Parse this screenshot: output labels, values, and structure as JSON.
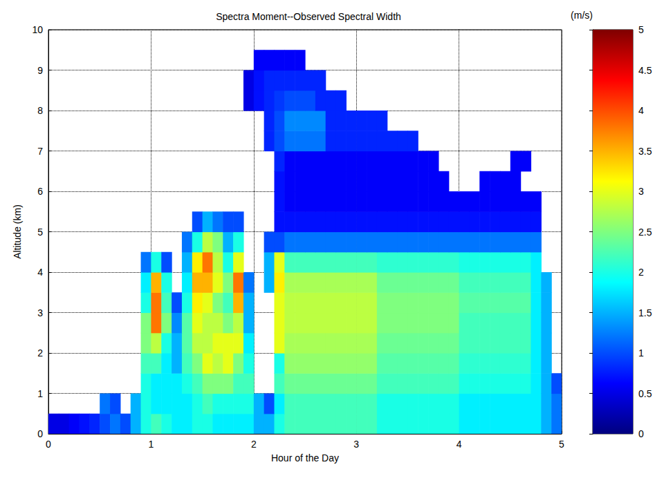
{
  "chart_data": {
    "type": "heatmap",
    "title": "Spectra Moment--Observed Spectral Width",
    "xlabel": "Hour of the Day",
    "ylabel": "Altitude (km)",
    "xlim": [
      0,
      5
    ],
    "xticks": [
      0,
      1,
      2,
      3,
      4,
      5
    ],
    "ylim": [
      0,
      10
    ],
    "yticks": [
      0,
      1,
      2,
      3,
      4,
      5,
      6,
      7,
      8,
      9,
      10
    ],
    "grid": true,
    "x": [
      0.05,
      0.15,
      0.25,
      0.35,
      0.45,
      0.55,
      0.65,
      0.75,
      0.85,
      0.95,
      1.05,
      1.15,
      1.25,
      1.35,
      1.45,
      1.55,
      1.65,
      1.75,
      1.85,
      1.95,
      2.05,
      2.15,
      2.25,
      2.35,
      2.45,
      2.55,
      2.65,
      2.75,
      2.85,
      2.95,
      3.05,
      3.15,
      3.25,
      3.35,
      3.45,
      3.55,
      3.65,
      3.75,
      3.85,
      3.95,
      4.05,
      4.15,
      4.25,
      4.35,
      4.45,
      4.55,
      4.65,
      4.75,
      4.85,
      4.95
    ],
    "y": [
      0.25,
      0.75,
      1.25,
      1.75,
      2.25,
      2.75,
      3.25,
      3.75,
      4.25,
      4.75,
      5.25,
      5.75,
      6.25,
      6.75,
      7.25,
      7.75,
      8.25,
      8.75,
      9.25,
      9.75
    ],
    "values": [
      [
        0.5,
        0.5,
        0.6,
        0.7,
        0.8,
        1.0,
        1.2,
        1.0,
        1.5,
        2.0,
        2.2,
        2.0,
        1.8,
        1.8,
        2.0,
        2.0,
        1.8,
        1.8,
        1.8,
        1.8,
        1.5,
        1.5,
        2.0,
        2.2,
        2.2,
        2.2,
        2.2,
        2.2,
        2.2,
        2.2,
        2.2,
        2.2,
        2.0,
        2.0,
        2.0,
        2.0,
        2.0,
        2.0,
        2.0,
        2.0,
        1.8,
        1.8,
        1.8,
        1.8,
        1.8,
        1.8,
        1.8,
        1.8,
        1.5,
        1.2
      ],
      [
        null,
        null,
        null,
        null,
        null,
        1.2,
        1.0,
        null,
        1.5,
        2.0,
        1.8,
        1.8,
        1.8,
        1.8,
        2.0,
        2.2,
        2.0,
        2.0,
        2.0,
        2.0,
        1.5,
        1.0,
        1.8,
        2.2,
        2.2,
        2.2,
        2.2,
        2.2,
        2.2,
        2.2,
        2.2,
        2.2,
        2.0,
        2.0,
        2.0,
        2.0,
        2.0,
        2.0,
        2.0,
        2.0,
        1.8,
        1.8,
        1.8,
        1.8,
        1.8,
        1.8,
        1.8,
        1.8,
        1.5,
        1.2
      ],
      [
        null,
        null,
        null,
        null,
        null,
        null,
        null,
        null,
        null,
        2.0,
        1.8,
        1.8,
        1.8,
        2.0,
        2.2,
        2.5,
        2.5,
        2.5,
        2.2,
        2.2,
        null,
        null,
        2.2,
        2.4,
        2.4,
        2.4,
        2.4,
        2.4,
        2.4,
        2.4,
        2.4,
        2.4,
        2.2,
        2.2,
        2.2,
        2.2,
        2.2,
        2.2,
        2.2,
        2.2,
        2.0,
        2.0,
        2.0,
        2.0,
        2.0,
        2.0,
        2.0,
        1.8,
        1.5,
        1.0
      ],
      [
        null,
        null,
        null,
        null,
        null,
        null,
        null,
        null,
        null,
        2.2,
        2.2,
        1.8,
        1.5,
        2.2,
        2.5,
        3.0,
        2.8,
        3.0,
        2.5,
        2.0,
        null,
        null,
        2.0,
        2.6,
        2.6,
        2.6,
        2.6,
        2.6,
        2.6,
        2.6,
        2.6,
        2.6,
        2.3,
        2.3,
        2.3,
        2.3,
        2.3,
        2.3,
        2.3,
        2.3,
        2.1,
        2.1,
        2.1,
        2.1,
        2.1,
        2.1,
        2.1,
        1.8,
        1.5,
        null
      ],
      [
        null,
        null,
        null,
        null,
        null,
        null,
        null,
        null,
        null,
        2.5,
        2.8,
        2.0,
        1.5,
        2.3,
        2.8,
        2.8,
        3.0,
        3.0,
        3.0,
        1.8,
        null,
        null,
        3.0,
        2.7,
        2.7,
        2.7,
        2.7,
        2.7,
        2.7,
        2.7,
        2.7,
        2.7,
        2.4,
        2.4,
        2.4,
        2.4,
        2.4,
        2.4,
        2.4,
        2.4,
        2.2,
        2.2,
        2.2,
        2.2,
        2.2,
        2.2,
        2.2,
        1.8,
        1.5,
        null
      ],
      [
        null,
        null,
        null,
        null,
        null,
        null,
        null,
        null,
        null,
        2.5,
        3.8,
        2.5,
        1.3,
        2.3,
        3.0,
        2.8,
        2.8,
        2.5,
        2.8,
        1.5,
        null,
        null,
        3.0,
        2.8,
        2.8,
        2.8,
        2.8,
        2.8,
        2.8,
        2.8,
        2.8,
        2.8,
        2.5,
        2.5,
        2.5,
        2.5,
        2.5,
        2.5,
        2.5,
        2.5,
        2.2,
        2.2,
        2.2,
        2.2,
        2.2,
        2.2,
        2.2,
        1.8,
        1.5,
        null
      ],
      [
        null,
        null,
        null,
        null,
        null,
        null,
        null,
        null,
        null,
        2.0,
        3.8,
        2.2,
        1.0,
        2.0,
        3.2,
        3.0,
        2.5,
        2.2,
        3.5,
        1.5,
        null,
        null,
        3.0,
        2.8,
        2.8,
        2.8,
        2.8,
        2.8,
        2.8,
        2.8,
        2.8,
        2.8,
        2.5,
        2.5,
        2.5,
        2.5,
        2.5,
        2.5,
        2.5,
        2.5,
        2.3,
        2.3,
        2.3,
        2.3,
        2.3,
        2.3,
        2.3,
        1.8,
        1.5,
        null
      ],
      [
        null,
        null,
        null,
        null,
        null,
        null,
        null,
        null,
        null,
        1.8,
        3.5,
        2.0,
        null,
        1.8,
        3.5,
        3.5,
        3.0,
        2.5,
        3.8,
        1.2,
        null,
        1.5,
        3.2,
        2.7,
        2.7,
        2.7,
        2.7,
        2.7,
        2.7,
        2.7,
        2.7,
        2.7,
        2.4,
        2.4,
        2.4,
        2.4,
        2.4,
        2.4,
        2.4,
        2.4,
        2.2,
        2.2,
        2.2,
        2.2,
        2.2,
        2.2,
        2.2,
        1.8,
        1.5,
        null
      ],
      [
        null,
        null,
        null,
        null,
        null,
        null,
        null,
        null,
        null,
        1.2,
        2.0,
        1.0,
        null,
        1.5,
        3.2,
        3.8,
        2.8,
        2.0,
        3.0,
        null,
        null,
        1.5,
        3.0,
        2.2,
        2.2,
        2.2,
        2.2,
        2.2,
        2.2,
        2.2,
        2.2,
        2.2,
        2.1,
        2.1,
        2.1,
        2.1,
        2.1,
        2.1,
        2.1,
        2.1,
        2.0,
        2.0,
        2.0,
        2.0,
        2.0,
        2.0,
        2.0,
        1.8,
        null,
        null
      ],
      [
        null,
        null,
        null,
        null,
        null,
        null,
        null,
        null,
        null,
        null,
        null,
        null,
        null,
        1.2,
        2.0,
        2.8,
        2.5,
        1.5,
        2.0,
        null,
        null,
        1.0,
        1.0,
        1.2,
        1.2,
        1.2,
        1.2,
        1.2,
        1.2,
        1.2,
        1.2,
        1.2,
        1.2,
        1.2,
        1.2,
        1.2,
        1.2,
        1.2,
        1.2,
        1.2,
        1.2,
        1.2,
        1.2,
        1.2,
        1.2,
        1.2,
        1.2,
        1.2,
        null,
        null
      ],
      [
        null,
        null,
        null,
        null,
        null,
        null,
        null,
        null,
        null,
        null,
        null,
        null,
        null,
        null,
        1.0,
        1.5,
        1.2,
        1.0,
        1.0,
        null,
        null,
        null,
        0.7,
        0.7,
        0.7,
        0.7,
        0.7,
        0.7,
        0.7,
        0.7,
        0.7,
        0.7,
        0.7,
        0.7,
        0.7,
        0.7,
        0.7,
        0.7,
        0.7,
        0.7,
        0.7,
        0.7,
        0.7,
        0.7,
        0.7,
        0.7,
        0.7,
        0.7,
        null,
        null
      ],
      [
        null,
        null,
        null,
        null,
        null,
        null,
        null,
        null,
        null,
        null,
        null,
        null,
        null,
        null,
        null,
        null,
        null,
        null,
        null,
        null,
        null,
        null,
        0.7,
        0.6,
        0.6,
        0.6,
        0.6,
        0.6,
        0.6,
        0.6,
        0.6,
        0.6,
        0.6,
        0.6,
        0.6,
        0.6,
        0.6,
        0.6,
        0.6,
        0.6,
        0.6,
        0.6,
        0.6,
        0.6,
        0.6,
        0.6,
        0.6,
        0.6,
        null,
        null
      ],
      [
        null,
        null,
        null,
        null,
        null,
        null,
        null,
        null,
        null,
        null,
        null,
        null,
        null,
        null,
        null,
        null,
        null,
        null,
        null,
        null,
        null,
        null,
        0.7,
        0.6,
        0.6,
        0.6,
        0.6,
        0.6,
        0.6,
        0.6,
        0.6,
        0.6,
        0.6,
        0.6,
        0.6,
        0.6,
        0.6,
        0.6,
        0.6,
        null,
        null,
        null,
        0.6,
        0.6,
        0.6,
        0.6,
        null,
        null,
        null
      ],
      [
        null,
        null,
        null,
        null,
        null,
        null,
        null,
        null,
        null,
        null,
        null,
        null,
        null,
        null,
        null,
        null,
        null,
        null,
        null,
        null,
        null,
        null,
        0.8,
        0.6,
        0.6,
        0.6,
        0.6,
        0.6,
        0.6,
        0.6,
        0.6,
        0.6,
        0.6,
        0.6,
        0.6,
        0.6,
        0.6,
        0.6,
        null,
        null,
        null,
        null,
        null,
        null,
        null,
        0.6,
        0.6,
        null,
        null,
        null
      ],
      [
        null,
        null,
        null,
        null,
        null,
        null,
        null,
        null,
        null,
        null,
        null,
        null,
        null,
        null,
        null,
        null,
        null,
        null,
        null,
        null,
        null,
        0.8,
        1.0,
        1.2,
        1.2,
        1.2,
        1.2,
        0.8,
        0.8,
        0.8,
        0.8,
        0.8,
        0.8,
        0.8,
        0.8,
        0.8,
        null,
        null,
        null,
        null,
        null,
        null,
        null,
        null,
        null,
        null,
        null,
        null,
        null,
        null
      ],
      [
        null,
        null,
        null,
        null,
        null,
        null,
        null,
        null,
        null,
        null,
        null,
        null,
        null,
        null,
        null,
        null,
        null,
        null,
        null,
        null,
        null,
        0.8,
        1.0,
        1.3,
        1.3,
        1.3,
        1.3,
        0.8,
        0.8,
        0.8,
        0.8,
        0.8,
        0.8,
        null,
        null,
        null,
        null,
        null,
        null,
        null,
        null,
        null,
        null,
        null,
        null,
        null,
        null,
        null,
        null,
        null
      ],
      [
        null,
        null,
        null,
        null,
        null,
        null,
        null,
        null,
        null,
        null,
        null,
        null,
        null,
        null,
        null,
        null,
        null,
        null,
        null,
        0.5,
        0.7,
        0.8,
        0.9,
        1.0,
        1.0,
        1.0,
        0.8,
        0.8,
        0.8,
        null,
        null,
        null,
        null,
        null,
        null,
        null,
        null,
        null,
        null,
        null,
        null,
        null,
        null,
        null,
        null,
        null,
        null,
        null,
        null,
        null
      ],
      [
        null,
        null,
        null,
        null,
        null,
        null,
        null,
        null,
        null,
        null,
        null,
        null,
        null,
        null,
        null,
        null,
        null,
        null,
        null,
        0.5,
        0.7,
        0.8,
        0.8,
        0.8,
        0.8,
        0.8,
        0.8,
        null,
        null,
        null,
        null,
        null,
        null,
        null,
        null,
        null,
        null,
        null,
        null,
        null,
        null,
        null,
        null,
        null,
        null,
        null,
        null,
        null,
        null,
        null
      ],
      [
        null,
        null,
        null,
        null,
        null,
        null,
        null,
        null,
        null,
        null,
        null,
        null,
        null,
        null,
        null,
        null,
        null,
        null,
        null,
        null,
        0.6,
        0.6,
        0.6,
        0.6,
        0.6,
        null,
        null,
        null,
        null,
        null,
        null,
        null,
        null,
        null,
        null,
        null,
        null,
        null,
        null,
        null,
        null,
        null,
        null,
        null,
        null,
        null,
        null,
        null,
        null,
        null
      ],
      [
        null,
        null,
        null,
        null,
        null,
        null,
        null,
        null,
        null,
        null,
        null,
        null,
        null,
        null,
        null,
        null,
        null,
        null,
        null,
        null,
        null,
        null,
        null,
        null,
        null,
        null,
        null,
        null,
        null,
        null,
        null,
        null,
        null,
        null,
        null,
        null,
        null,
        null,
        null,
        null,
        null,
        null,
        null,
        null,
        null,
        null,
        null,
        null,
        null,
        null
      ]
    ],
    "colorbar": {
      "label": "(m/s)",
      "range": [
        0,
        5
      ],
      "ticks": [
        0,
        0.5,
        1,
        1.5,
        2,
        2.5,
        3,
        3.5,
        4,
        4.5,
        5
      ]
    }
  }
}
